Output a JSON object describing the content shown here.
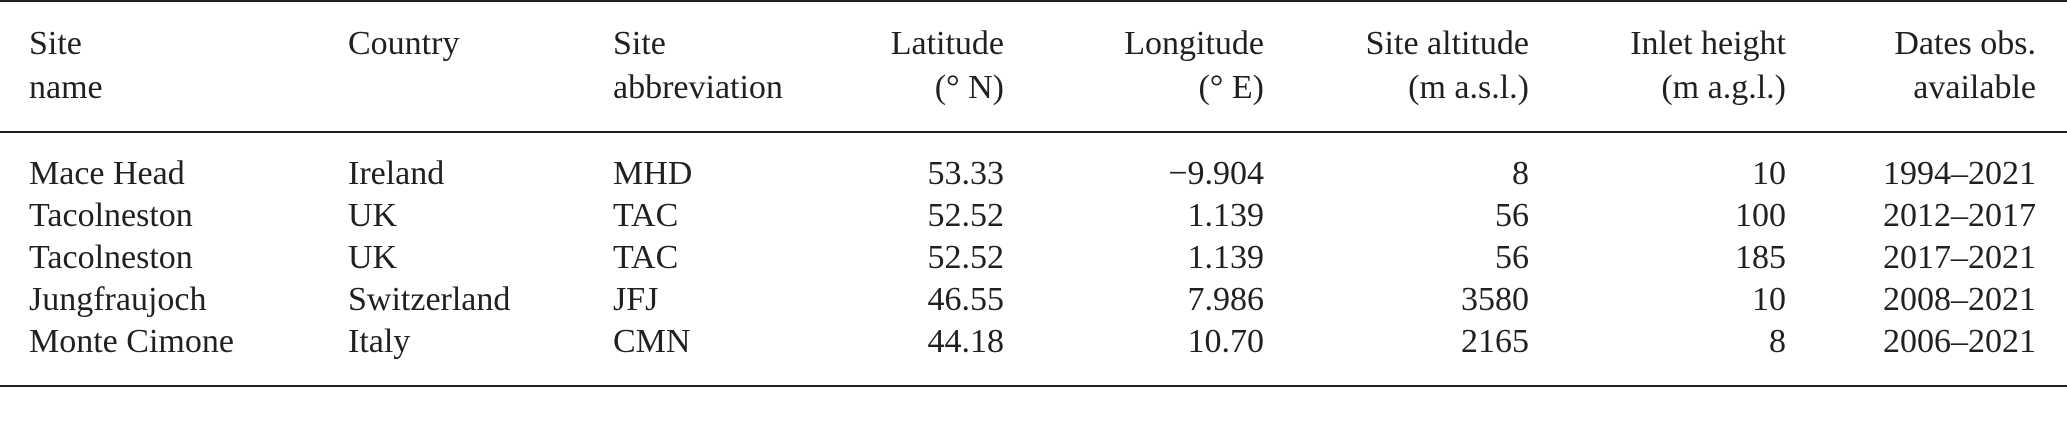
{
  "table": {
    "headers": [
      {
        "line1": "Site",
        "line2": "name"
      },
      {
        "line1": "Country",
        "line2": ""
      },
      {
        "line1": "Site",
        "line2": "abbreviation"
      },
      {
        "line1": "Latitude",
        "line2": "(° N)"
      },
      {
        "line1": "Longitude",
        "line2": "(° E)"
      },
      {
        "line1": "Site altitude",
        "line2": "(m a.s.l.)"
      },
      {
        "line1": "Inlet height",
        "line2": "(m a.g.l.)"
      },
      {
        "line1": "Dates obs.",
        "line2": "available"
      }
    ],
    "rows": [
      [
        "Mace Head",
        "Ireland",
        "MHD",
        "53.33",
        "−9.904",
        "8",
        "10",
        "1994–2021"
      ],
      [
        "Tacolneston",
        "UK",
        "TAC",
        "52.52",
        "1.139",
        "56",
        "100",
        "2012–2017"
      ],
      [
        "Tacolneston",
        "UK",
        "TAC",
        "52.52",
        "1.139",
        "56",
        "185",
        "2017–2021"
      ],
      [
        "Jungfraujoch",
        "Switzerland",
        "JFJ",
        "46.55",
        "7.986",
        "3580",
        "10",
        "2008–2021"
      ],
      [
        "Monte Cimone",
        "Italy",
        "CMN",
        "44.18",
        "10.70",
        "2165",
        "8",
        "2006–2021"
      ]
    ]
  }
}
